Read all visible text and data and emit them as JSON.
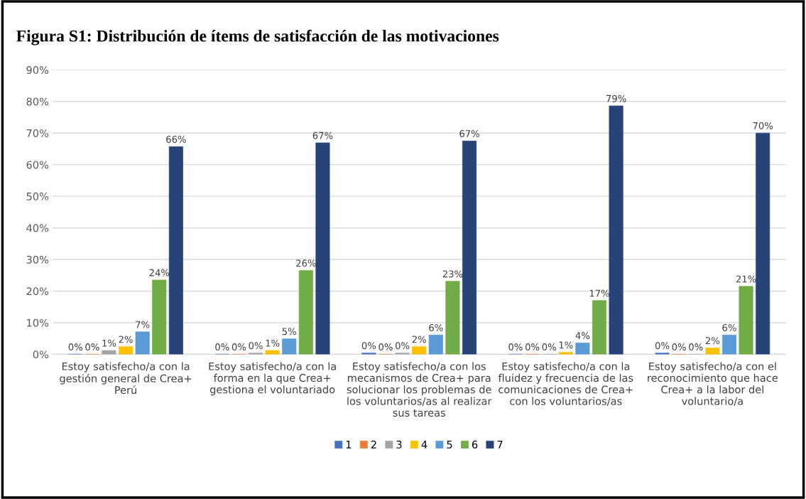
{
  "chart_data": {
    "type": "bar",
    "title": "Figura S1: Distribución de ítems de satisfacción de las motivaciones",
    "categories": [
      "Estoy satisfecho/a con la\ngestión general de Crea+\nPerú",
      "Estoy satisfecho/a con la\nforma en la que Crea+\ngestiona el voluntariado",
      "Estoy satisfecho/a con los\nmecanismos de Crea+ para\nsolucionar los problemas de\nlos voluntarios/as al realizar\nsus tareas",
      "Estoy satisfecho/a con la\nfluidez y frecuencia de las\ncomunicaciones de Crea+\ncon los voluntarios/as",
      "Estoy satisfecho/a con el\nreconocimiento que hace\nCrea+ a la labor del\nvoluntario/a"
    ],
    "series": [
      {
        "name": "1",
        "color": "#4472c4",
        "values": [
          0,
          0,
          0.4,
          0,
          0.4
        ],
        "value_labels": [
          "0%",
          "0%",
          "0%",
          "0%",
          "0%"
        ]
      },
      {
        "name": "2",
        "color": "#ed7d31",
        "values": [
          0,
          0,
          0,
          0,
          0
        ],
        "value_labels": [
          "0%",
          "0%",
          "0%",
          "0%",
          "0%"
        ]
      },
      {
        "name": "3",
        "color": "#a5a5a5",
        "values": [
          1.2,
          0.4,
          0.4,
          0,
          0
        ],
        "value_labels": [
          "1%",
          "0%",
          "0%",
          "0%",
          "0%"
        ]
      },
      {
        "name": "4",
        "color": "#ffc000",
        "values": [
          2.4,
          1.2,
          2.4,
          0.6,
          2.0
        ],
        "value_labels": [
          "2%",
          "1%",
          "2%",
          "1%",
          "2%"
        ]
      },
      {
        "name": "5",
        "color": "#5b9bd5",
        "values": [
          7.1,
          4.9,
          6.1,
          3.6,
          6.1
        ],
        "value_labels": [
          "7%",
          "5%",
          "6%",
          "4%",
          "6%"
        ]
      },
      {
        "name": "6",
        "color": "#70ad47",
        "values": [
          23.5,
          26.5,
          23.1,
          17.0,
          21.5
        ],
        "value_labels": [
          "24%",
          "26%",
          "23%",
          "17%",
          "21%"
        ]
      },
      {
        "name": "7",
        "color": "#264478",
        "values": [
          65.7,
          66.9,
          67.5,
          78.6,
          70.0
        ],
        "value_labels": [
          "66%",
          "67%",
          "67%",
          "79%",
          "70%"
        ]
      }
    ],
    "ylim": [
      0,
      90
    ],
    "yticks": [
      {
        "value": 0,
        "label": "0%"
      },
      {
        "value": 10,
        "label": "10%"
      },
      {
        "value": 20,
        "label": "20%"
      },
      {
        "value": 30,
        "label": "30%"
      },
      {
        "value": 40,
        "label": "40%"
      },
      {
        "value": 50,
        "label": "50%"
      },
      {
        "value": 60,
        "label": "60%"
      },
      {
        "value": 70,
        "label": "70%"
      },
      {
        "value": 80,
        "label": "80%"
      },
      {
        "value": 90,
        "label": "90%"
      }
    ],
    "grid": "y",
    "legend": "bottom"
  }
}
